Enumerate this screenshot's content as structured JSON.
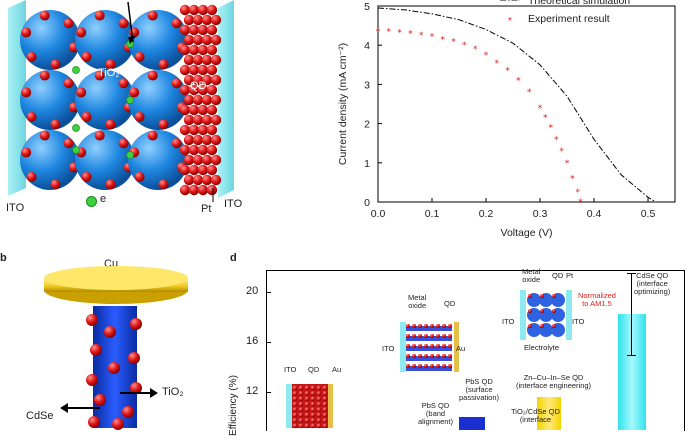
{
  "panel_a": {
    "labels": {
      "ito_left": "ITO",
      "e": "e",
      "pt": "Pt",
      "ito_right": "ITO",
      "tio2": "TiO₂",
      "qd": "QD"
    }
  },
  "panel_b": {
    "letter": "b",
    "labels": {
      "cu": "Cu",
      "tio2": "TiO₂",
      "cdse": "CdSe"
    }
  },
  "panel_d": {
    "letter": "d",
    "ylabel": "Efficiency (%)",
    "yticks": [
      "20",
      "16",
      "12"
    ],
    "annotations": {
      "pbs_band": "PbS QD\n(band\nalignment)",
      "pbs_surface": "PbS QD\n(surface\npassivation)",
      "tio2_cdse": "TiO₂/CdSe QD\n(interface",
      "zn_cu": "Zn–Cu–In–Se QD\n(interface engineering)",
      "cdse_opt": "CdSe QD\n(interface\noptimizing)",
      "normalized": "Normalized\nto AM1.5"
    },
    "inset1": {
      "ito": "ITO",
      "qd": "QD",
      "au": "Au"
    },
    "inset2": {
      "metal_oxide": "Metal\noxide",
      "qd": "QD",
      "ito": "ITO",
      "au": "Au"
    },
    "inset3": {
      "metal_oxide": "Metal\noxide",
      "qd": "QD",
      "pt": "Pt",
      "ito": "ITO",
      "ito2": "ITO",
      "electrolyte": "Electrolyte"
    },
    "colors": {
      "bar_blue": "#1a2fd0",
      "bar_yellow": "#f2d400",
      "bar_cyan": "#2fe3ee"
    }
  },
  "chart_data": {
    "type": "line",
    "xlabel": "Voltage (V)",
    "ylabel": "Current density (mA cm⁻²)",
    "xlim": [
      0,
      0.55
    ],
    "ylim": [
      0,
      5
    ],
    "xticks": [
      "0.0",
      "0.1",
      "0.2",
      "0.3",
      "0.4",
      "0.5"
    ],
    "yticks": [
      "0",
      "1",
      "2",
      "3",
      "4",
      "5"
    ],
    "legend": [
      "Theoretical simulation",
      "Experiment result"
    ],
    "series": [
      {
        "name": "Theoretical simulation",
        "style": "dash-dot",
        "color": "#000000",
        "x": [
          0,
          0.05,
          0.1,
          0.15,
          0.2,
          0.25,
          0.3,
          0.35,
          0.4,
          0.45,
          0.5,
          0.515
        ],
        "y": [
          4.95,
          4.9,
          4.8,
          4.65,
          4.4,
          4.05,
          3.5,
          2.7,
          1.6,
          0.7,
          0.12,
          0
        ]
      },
      {
        "name": "Experiment result",
        "style": "star-markers",
        "color": "#e02020",
        "x": [
          0,
          0.02,
          0.04,
          0.06,
          0.08,
          0.1,
          0.12,
          0.14,
          0.16,
          0.18,
          0.2,
          0.22,
          0.24,
          0.26,
          0.28,
          0.3,
          0.31,
          0.32,
          0.33,
          0.34,
          0.35,
          0.36,
          0.37,
          0.375
        ],
        "y": [
          4.35,
          4.35,
          4.32,
          4.3,
          4.26,
          4.22,
          4.15,
          4.1,
          4.0,
          3.9,
          3.75,
          3.55,
          3.35,
          3.1,
          2.8,
          2.4,
          2.15,
          1.9,
          1.6,
          1.3,
          1.0,
          0.6,
          0.25,
          0.0
        ]
      }
    ]
  }
}
